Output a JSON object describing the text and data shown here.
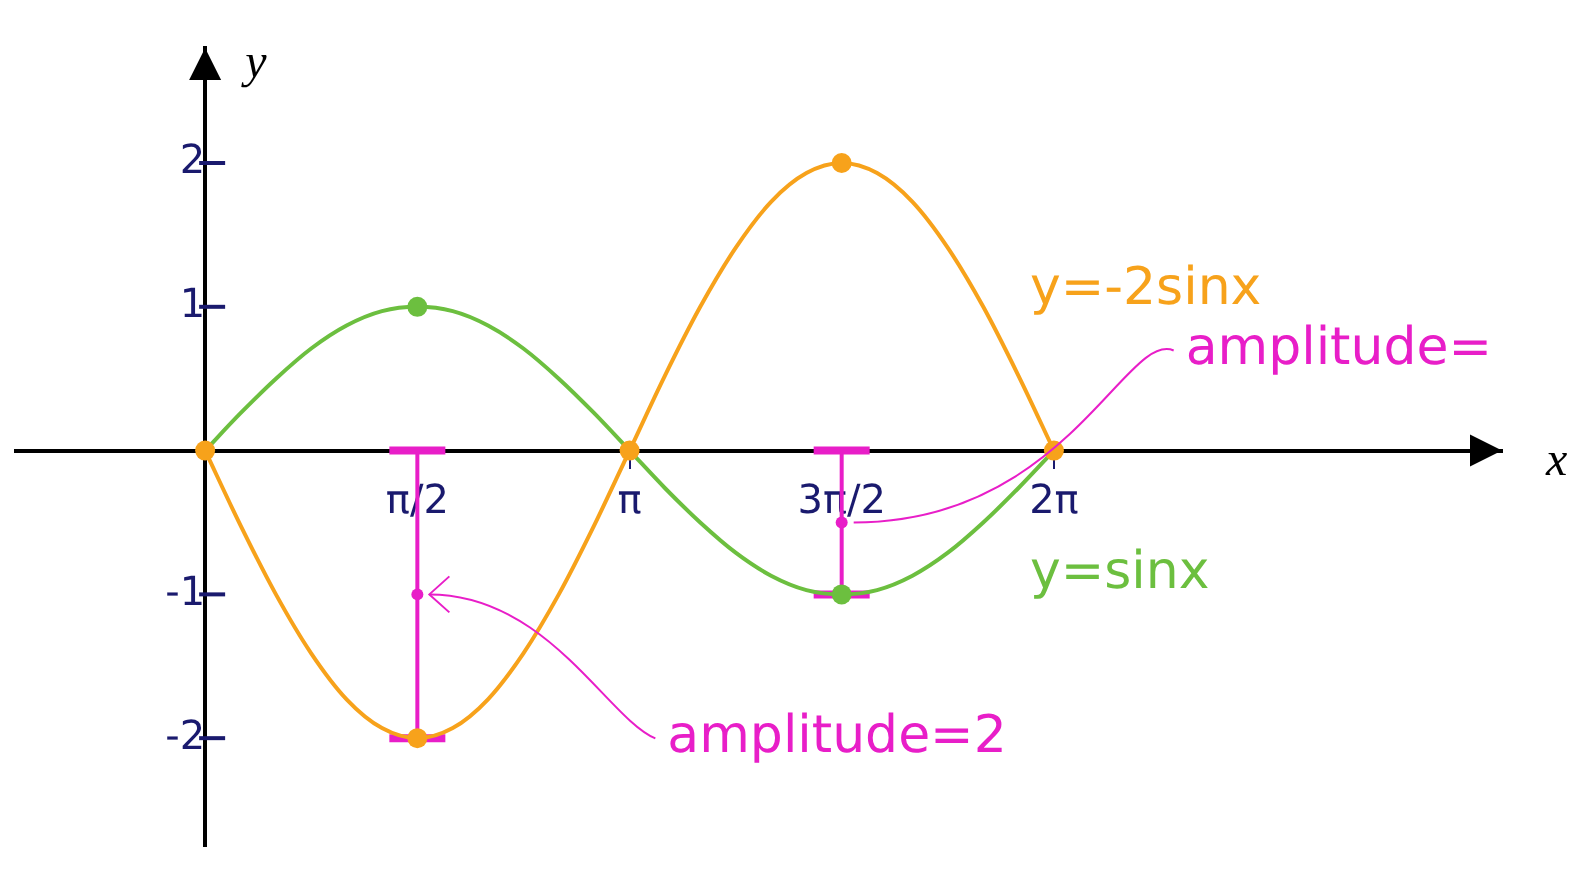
{
  "chart_data": {
    "type": "line",
    "xlabel": "x",
    "ylabel": "y",
    "xlim": [
      -1.4,
      9.6
    ],
    "ylim": [
      -2.75,
      2.8
    ],
    "xticks": [
      {
        "value": 1.571,
        "label": "π/2"
      },
      {
        "value": 3.142,
        "label": "π"
      },
      {
        "value": 4.712,
        "label": "3π/2"
      },
      {
        "value": 6.283,
        "label": "2π"
      }
    ],
    "yticks": [
      -2,
      -1,
      1,
      2
    ],
    "grid": false,
    "legend": false,
    "marker": "none",
    "line_style": "solid",
    "series": [
      {
        "name": "y=-2sinx",
        "color": "#f7a21b",
        "x": [
          0,
          0.262,
          0.524,
          0.785,
          1.047,
          1.309,
          1.571,
          1.833,
          2.094,
          2.356,
          2.618,
          2.88,
          3.142,
          3.403,
          3.665,
          3.927,
          4.189,
          4.451,
          4.712,
          4.974,
          5.236,
          5.498,
          5.76,
          6.021,
          6.283
        ],
        "values": [
          0,
          -0.52,
          -1,
          -1.41,
          -1.73,
          -1.93,
          -2,
          -1.93,
          -1.73,
          -1.41,
          -1,
          -0.52,
          0,
          0.52,
          1,
          1.41,
          1.73,
          1.93,
          2,
          1.93,
          1.73,
          1.41,
          1,
          0.52,
          0
        ]
      },
      {
        "name": "y=sinx",
        "color": "#6cbf3f",
        "x": [
          0,
          0.262,
          0.524,
          0.785,
          1.047,
          1.309,
          1.571,
          1.833,
          2.094,
          2.356,
          2.618,
          2.88,
          3.142,
          3.403,
          3.665,
          3.927,
          4.189,
          4.451,
          4.712,
          4.974,
          5.236,
          5.498,
          5.76,
          6.021,
          6.283
        ],
        "values": [
          0,
          0.26,
          0.5,
          0.71,
          0.87,
          0.97,
          1,
          0.97,
          0.87,
          0.71,
          0.5,
          0.26,
          0,
          -0.26,
          -0.5,
          -0.71,
          -0.87,
          -0.97,
          -1,
          -0.97,
          -0.87,
          -0.71,
          -0.5,
          -0.26,
          0
        ]
      },
      {
        "type": "scatter",
        "marker": "circle",
        "color": "#6cbf3f",
        "x": [
          1.571,
          4.712
        ],
        "values": [
          1,
          -1
        ]
      },
      {
        "type": "scatter",
        "marker": "circle",
        "color": "#f7a21b",
        "x": [
          0,
          1.571,
          3.142,
          4.712,
          6.283
        ],
        "values": [
          0,
          -2,
          0,
          2,
          0
        ]
      },
      {
        "type": "scatter",
        "marker": "circle",
        "color": "#e81ec8",
        "x": [
          1.571,
          4.712
        ],
        "values": [
          -1,
          -0.5
        ],
        "errors": [
          1,
          0.5
        ]
      }
    ],
    "annotations": [
      {
        "text": "amplitude=2",
        "x": 1.571,
        "y": -1
      },
      {
        "text": "amplitude=",
        "x": 4.712,
        "y": -0.5
      }
    ]
  }
}
